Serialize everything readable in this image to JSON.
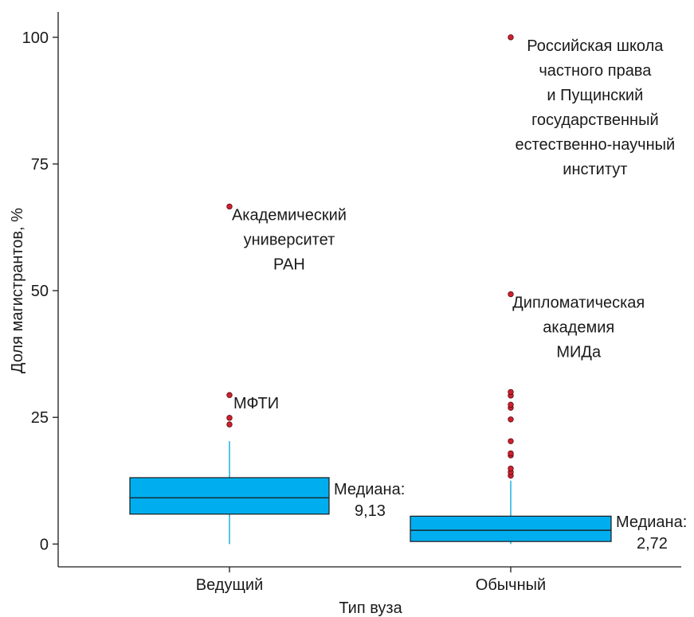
{
  "chart_data": {
    "type": "box",
    "xlabel": "Тип вуза",
    "ylabel": "Доля магистрантов, %",
    "ylim": [
      -4.5,
      105
    ],
    "yticks": [
      0,
      25,
      50,
      75,
      100
    ],
    "grid": false,
    "colors": {
      "box_fill": "#00aeef",
      "whisker": "#29b6e0",
      "outlier_fill": "#d0202e",
      "median_line": "#1a1a1a",
      "axis": "#1a1a1a"
    },
    "categories": [
      "Ведущий",
      "Обычный"
    ],
    "boxes": [
      {
        "category": "Ведущий",
        "q1": 5.9,
        "median": 9.13,
        "q3": 13.1,
        "whisker_low": 0,
        "whisker_high": 20.3,
        "median_label": [
          "Медиана:",
          "9,13"
        ],
        "outliers": [
          23.6,
          24.9,
          29.4,
          66.6
        ]
      },
      {
        "category": "Обычный",
        "q1": 0.5,
        "median": 2.72,
        "q3": 5.5,
        "whisker_low": 0,
        "whisker_high": 12.5,
        "median_label": [
          "Медиана:",
          "2,72"
        ],
        "outliers": [
          13.5,
          14.2,
          14.9,
          17.5,
          17.9,
          20.3,
          24.6,
          26.9,
          27.5,
          29.3,
          30.0,
          49.3,
          100
        ]
      }
    ],
    "annotations": [
      {
        "category": "Ведущий",
        "y": 66.6,
        "lines": [
          "Академический",
          "университет",
          "РАН"
        ]
      },
      {
        "category": "Ведущий",
        "y": 29.4,
        "lines": [
          "МФТИ"
        ]
      },
      {
        "category": "Обычный",
        "y": 100,
        "lines": [
          "Российская школа",
          "частного права",
          "и Пущинский",
          "государственный",
          "естественно-научный",
          "институт"
        ]
      },
      {
        "category": "Обычный",
        "y": 49.3,
        "lines": [
          "Дипломатическая",
          "академия",
          "МИДа"
        ]
      }
    ]
  }
}
